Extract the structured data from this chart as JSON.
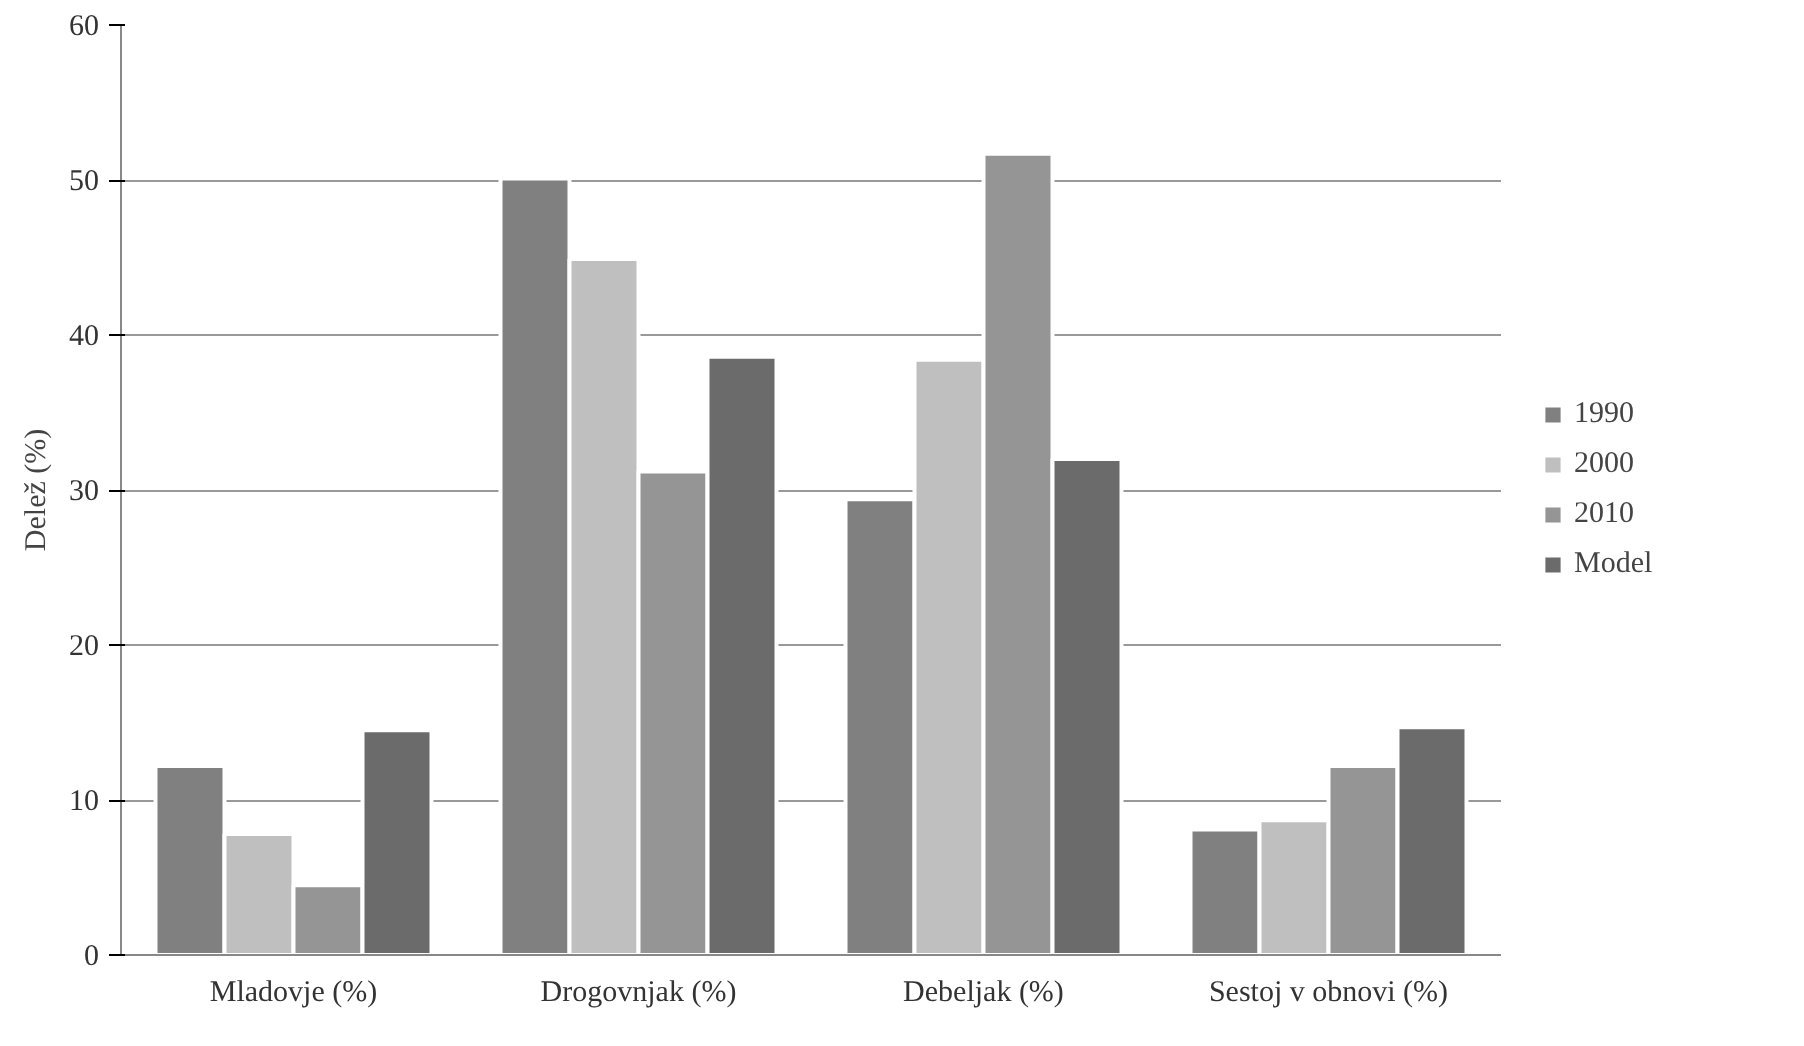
{
  "chart_data": {
    "type": "bar",
    "ylabel": "Delež (%)",
    "categories": [
      "Mladovje (%)",
      "Drogovnjak (%)",
      "Debeljak (%)",
      "Sestoj v obnovi (%)"
    ],
    "series": [
      {
        "name": "1990",
        "color": "#808080",
        "values": [
          12.2,
          50.1,
          29.4,
          8.1
        ]
      },
      {
        "name": "2000",
        "color": "#bfbfbf",
        "values": [
          7.8,
          44.9,
          38.4,
          8.7
        ]
      },
      {
        "name": "2010",
        "color": "#959595",
        "values": [
          4.5,
          31.2,
          51.7,
          12.2
        ]
      },
      {
        "name": "Model",
        "color": "#6b6b6b",
        "values": [
          14.5,
          38.6,
          32.0,
          14.7
        ]
      }
    ],
    "ylim": [
      0,
      60
    ],
    "yticks": [
      0,
      10,
      20,
      30,
      40,
      50,
      60
    ],
    "grid": "y",
    "legend": "right"
  }
}
